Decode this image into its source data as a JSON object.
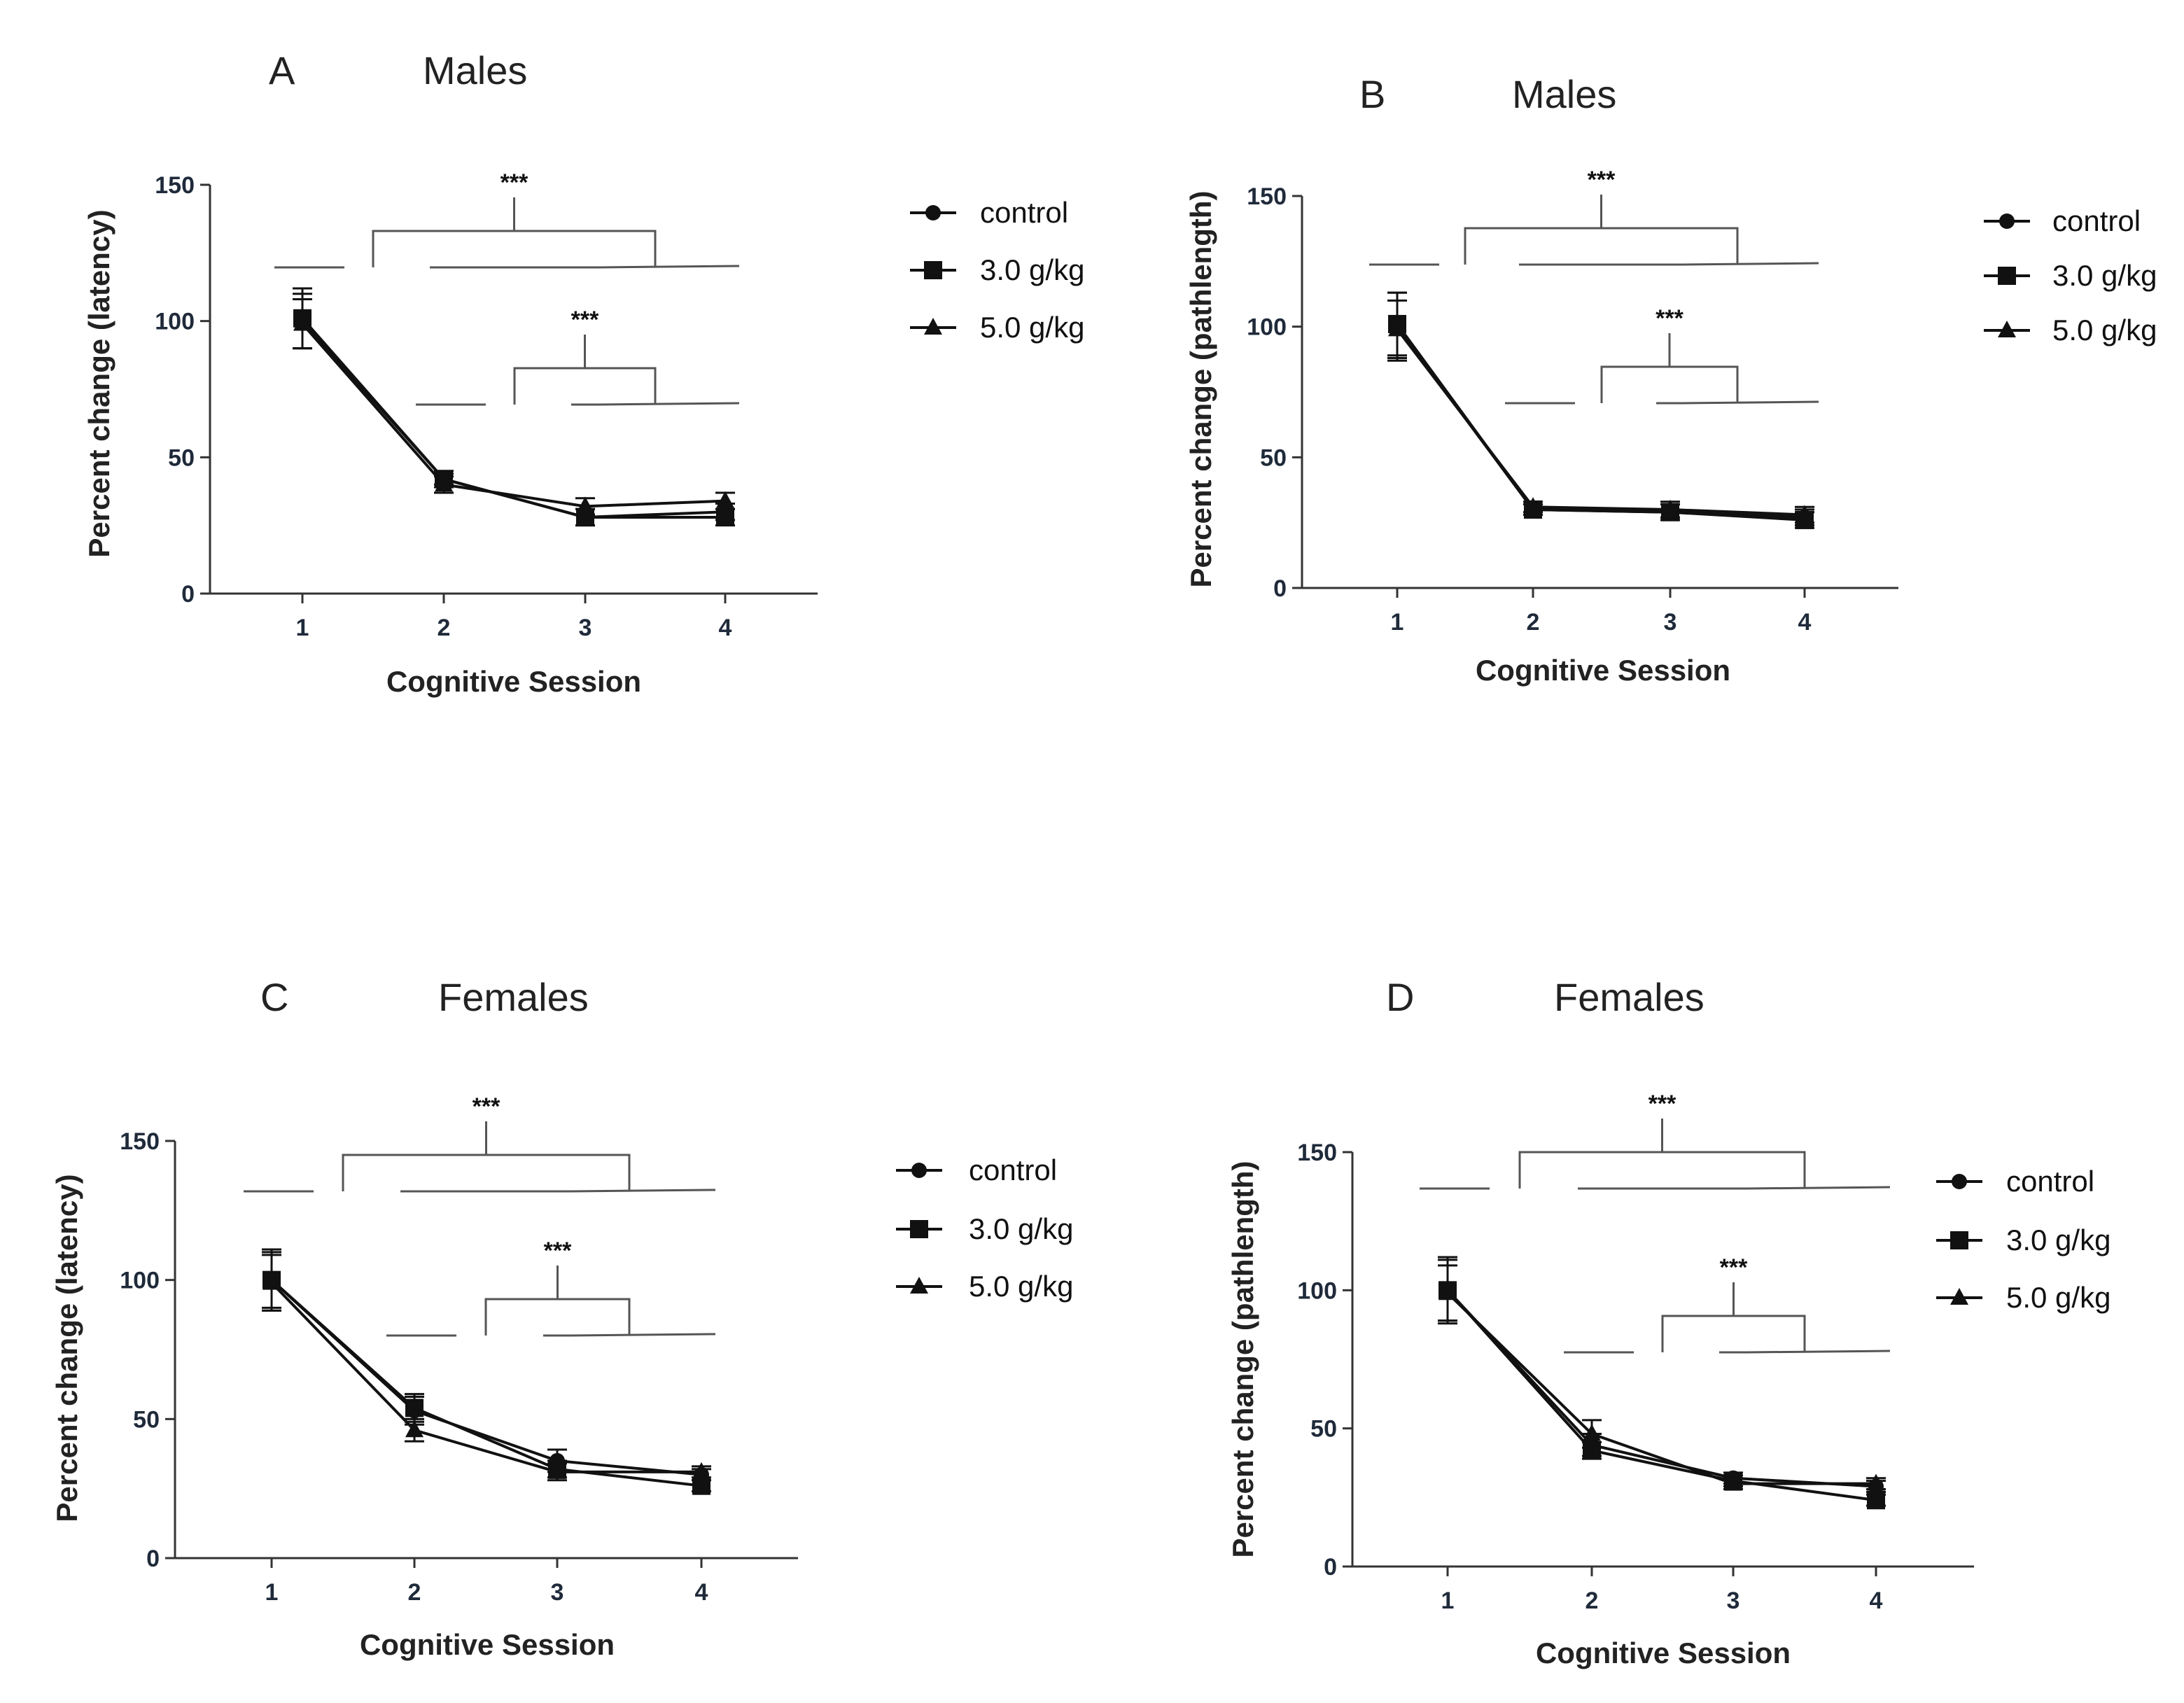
{
  "figure": {
    "background": "#ffffff",
    "line_color": "#111111",
    "bracket_color": "#555555"
  },
  "chart_data": [
    {
      "type": "line",
      "panel_label": "A",
      "title": "Males",
      "xlabel": "Cognitive Session",
      "ylabel": "Percent change (latency)",
      "x": [
        1,
        2,
        3,
        4
      ],
      "ylim": [
        0,
        150
      ],
      "yticks": [
        0,
        50,
        100,
        150
      ],
      "grid": false,
      "legend_position": "right",
      "series": [
        {
          "name": "control",
          "marker": "circle",
          "values": [
            100,
            42,
            28,
            30
          ],
          "errors": [
            10,
            3,
            3,
            3
          ]
        },
        {
          "name": "3.0 g/kg",
          "marker": "square",
          "values": [
            101,
            42,
            28,
            28
          ],
          "errors": [
            11,
            2,
            3,
            3
          ]
        },
        {
          "name": "5.0 g/kg",
          "marker": "triangle",
          "values": [
            99,
            40,
            32,
            34
          ],
          "errors": [
            9,
            3,
            3,
            3
          ]
        }
      ],
      "annotations": [
        {
          "text": "***",
          "from": [
            1,
            2
          ],
          "to": [
            3,
            4
          ],
          "level": "upper"
        },
        {
          "text": "***",
          "from": [
            2,
            3
          ],
          "to": [
            3,
            4
          ],
          "level": "lower"
        }
      ]
    },
    {
      "type": "line",
      "panel_label": "B",
      "title": "Males",
      "xlabel": "Cognitive Session",
      "ylabel": "Percent change (pathlength)",
      "x": [
        1,
        2,
        3,
        4
      ],
      "ylim": [
        0,
        150
      ],
      "yticks": [
        0,
        50,
        100,
        150
      ],
      "grid": false,
      "legend_position": "right",
      "series": [
        {
          "name": "control",
          "marker": "circle",
          "values": [
            100,
            30,
            29,
            27
          ],
          "errors": [
            13,
            2,
            3,
            3
          ]
        },
        {
          "name": "3.0 g/kg",
          "marker": "square",
          "values": [
            101,
            30,
            29,
            26
          ],
          "errors": [
            12,
            2,
            3,
            3
          ]
        },
        {
          "name": "5.0 g/kg",
          "marker": "triangle",
          "values": [
            99,
            31,
            30,
            28
          ],
          "errors": [
            11,
            2,
            3,
            3
          ]
        }
      ],
      "annotations": [
        {
          "text": "***",
          "from": [
            1,
            2
          ],
          "to": [
            3,
            4
          ],
          "level": "upper"
        },
        {
          "text": "***",
          "from": [
            2,
            3
          ],
          "to": [
            3,
            4
          ],
          "level": "lower"
        }
      ]
    },
    {
      "type": "line",
      "panel_label": "C",
      "title": "Females",
      "xlabel": "Cognitive Session",
      "ylabel": "Percent change (latency)",
      "x": [
        1,
        2,
        3,
        4
      ],
      "ylim": [
        0,
        150
      ],
      "yticks": [
        0,
        50,
        100,
        150
      ],
      "grid": false,
      "legend_position": "right",
      "series": [
        {
          "name": "control",
          "marker": "circle",
          "values": [
            100,
            53,
            35,
            30
          ],
          "errors": [
            11,
            5,
            4,
            2
          ]
        },
        {
          "name": "3.0 g/kg",
          "marker": "square",
          "values": [
            100,
            54,
            32,
            26
          ],
          "errors": [
            10,
            5,
            3,
            2
          ]
        },
        {
          "name": "5.0 g/kg",
          "marker": "triangle",
          "values": [
            99,
            46,
            31,
            31
          ],
          "errors": [
            10,
            4,
            3,
            2
          ]
        }
      ],
      "annotations": [
        {
          "text": "***",
          "from": [
            1,
            2
          ],
          "to": [
            3,
            4
          ],
          "level": "upper"
        },
        {
          "text": "***",
          "from": [
            2,
            3
          ],
          "to": [
            3,
            4
          ],
          "level": "lower"
        }
      ]
    },
    {
      "type": "line",
      "panel_label": "D",
      "title": "Females",
      "xlabel": "Cognitive Session",
      "ylabel": "Percent change (pathlength)",
      "x": [
        1,
        2,
        3,
        4
      ],
      "ylim": [
        0,
        150
      ],
      "yticks": [
        0,
        50,
        100,
        150
      ],
      "grid": false,
      "legend_position": "right",
      "series": [
        {
          "name": "control",
          "marker": "circle",
          "values": [
            100,
            44,
            32,
            29
          ],
          "errors": [
            11,
            4,
            2,
            2
          ]
        },
        {
          "name": "3.0 g/kg",
          "marker": "square",
          "values": [
            100,
            42,
            31,
            24
          ],
          "errors": [
            12,
            3,
            2,
            2
          ]
        },
        {
          "name": "5.0 g/kg",
          "marker": "triangle",
          "values": [
            99,
            48,
            30,
            30
          ],
          "errors": [
            10,
            5,
            2,
            2
          ]
        }
      ],
      "annotations": [
        {
          "text": "***",
          "from": [
            1,
            2
          ],
          "to": [
            3,
            4
          ],
          "level": "upper"
        },
        {
          "text": "***",
          "from": [
            2,
            3
          ],
          "to": [
            3,
            4
          ],
          "level": "lower"
        }
      ]
    }
  ]
}
